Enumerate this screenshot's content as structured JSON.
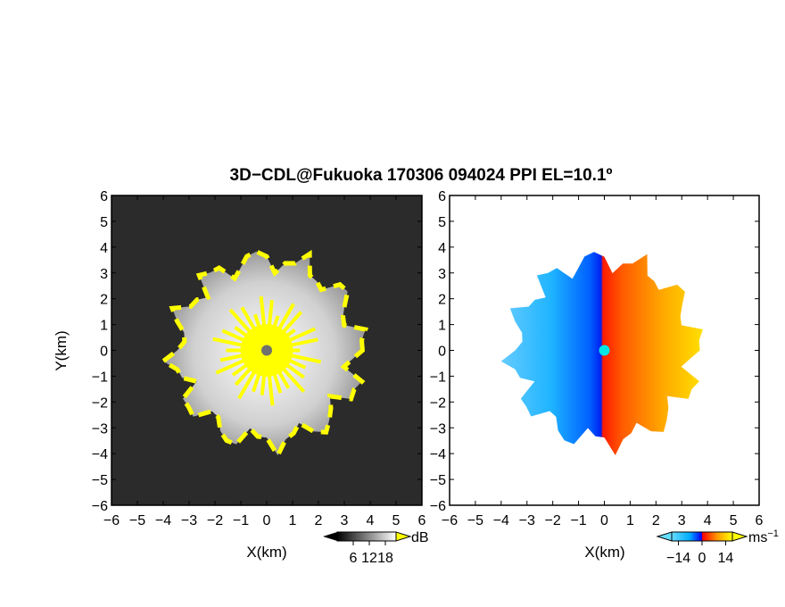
{
  "title": "3D−CDL@Fukuoka 170306 094024 PPI EL=10.1º",
  "chart_data": [
    {
      "type": "heatmap",
      "panel": "reflectivity",
      "xlabel": "X(km)",
      "ylabel": "Y(km)",
      "xlim": [
        -6,
        6
      ],
      "ylim": [
        -6,
        6
      ],
      "xticks": [
        "−6",
        "−5",
        "−4",
        "−3",
        "−2",
        "−1",
        "0",
        "1",
        "2",
        "3",
        "4",
        "5",
        "6"
      ],
      "yticks": [
        "6",
        "5",
        "4",
        "3",
        "2",
        "1",
        "0",
        "−1",
        "−2",
        "−3",
        "−4",
        "−5",
        "−6"
      ],
      "echo_radius_km": 3.9,
      "colorbar": {
        "ticks": [
          "6",
          "12",
          "18"
        ],
        "unit": "dB",
        "min": 0,
        "max": 22
      },
      "colors": {
        "background": "#2b2b2b",
        "echo": "#c8c8c8",
        "strong": "#ffff00",
        "center": "#707070"
      }
    },
    {
      "type": "heatmap",
      "panel": "doppler_velocity",
      "xlabel": "X(km)",
      "ylabel": "",
      "xlim": [
        -6,
        6
      ],
      "ylim": [
        -6,
        6
      ],
      "xticks": [
        "−6",
        "−5",
        "−4",
        "−3",
        "−2",
        "−1",
        "0",
        "1",
        "2",
        "3",
        "4",
        "5",
        "6"
      ],
      "yticks": [
        "6",
        "5",
        "4",
        "3",
        "2",
        "1",
        "0",
        "−1",
        "−2",
        "−3",
        "−4",
        "−5",
        "−6"
      ],
      "echo_radius_km": 3.9,
      "colorbar": {
        "ticks": [
          "−14",
          "0",
          "14"
        ],
        "unit": "ms",
        "unit_exp": "−1",
        "min": -18,
        "max": 18
      },
      "colors": {
        "approaching_light": "#1ec8ff",
        "approaching_dark": "#0030ff",
        "receding_dark": "#ff2000",
        "receding_light": "#ffd800",
        "center": "#00e5e5"
      }
    }
  ]
}
